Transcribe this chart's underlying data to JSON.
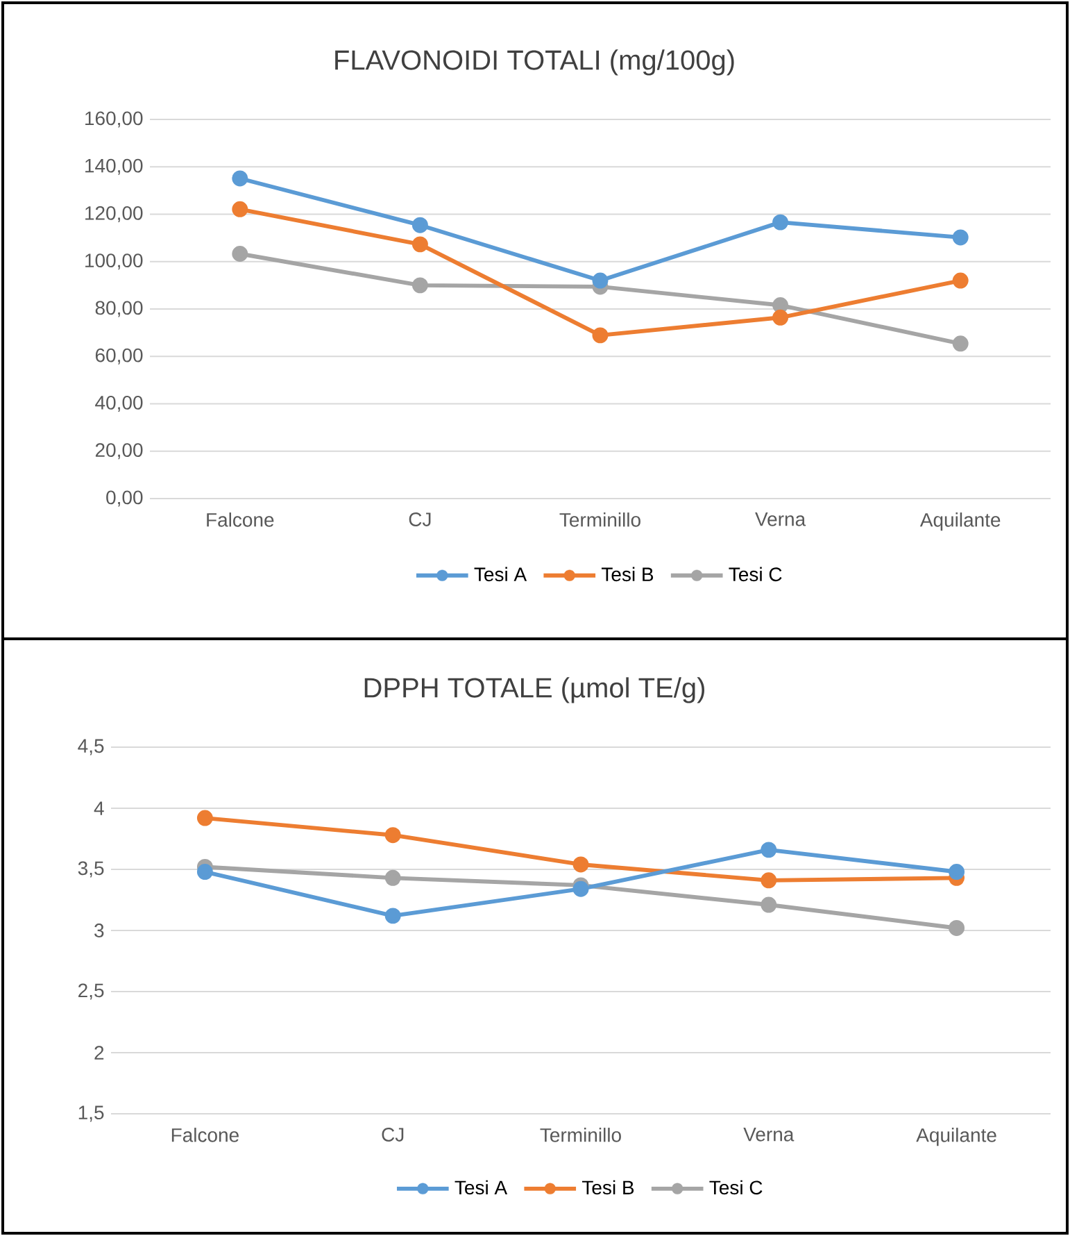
{
  "chart_data": [
    {
      "type": "line",
      "title": "FLAVONOIDI TOTALI (mg/100g)",
      "categories": [
        "Falcone",
        "CJ",
        "Terminillo",
        "Verna",
        "Aquilante"
      ],
      "series": [
        {
          "name": "Tesi A",
          "color": "#5b9bd5",
          "values": [
            135.1,
            115.4,
            92.0,
            116.6,
            110.2
          ]
        },
        {
          "name": "Tesi B",
          "color": "#ed7d31",
          "values": [
            122.1,
            107.3,
            68.9,
            76.4,
            92.0
          ]
        },
        {
          "name": "Tesi C",
          "color": "#a5a5a5",
          "values": [
            103.3,
            90.0,
            89.4,
            81.6,
            65.4
          ]
        }
      ],
      "ylim": [
        0,
        160
      ],
      "yticks": [
        {
          "value": 0,
          "label": "0,00"
        },
        {
          "value": 20,
          "label": "20,00"
        },
        {
          "value": 40,
          "label": "40,00"
        },
        {
          "value": 60,
          "label": "60,00"
        },
        {
          "value": 80,
          "label": "80,00"
        },
        {
          "value": 100,
          "label": "100,00"
        },
        {
          "value": 120,
          "label": "120,00"
        },
        {
          "value": 140,
          "label": "140,00"
        },
        {
          "value": 160,
          "label": "160,00"
        }
      ],
      "grid": "y",
      "legend": "bottom",
      "marker": "circle"
    },
    {
      "type": "line",
      "title": "DPPH TOTALE (µmol TE/g)",
      "categories": [
        "Falcone",
        "CJ",
        "Terminillo",
        "Verna",
        "Aquilante"
      ],
      "series": [
        {
          "name": "Tesi A",
          "color": "#5b9bd5",
          "values": [
            3.48,
            3.12,
            3.34,
            3.66,
            3.48
          ]
        },
        {
          "name": "Tesi B",
          "color": "#ed7d31",
          "values": [
            3.92,
            3.78,
            3.54,
            3.41,
            3.43
          ]
        },
        {
          "name": "Tesi C",
          "color": "#a5a5a5",
          "values": [
            3.52,
            3.43,
            3.37,
            3.21,
            3.02
          ]
        }
      ],
      "ylim": [
        1.5,
        4.5
      ],
      "yticks": [
        {
          "value": 1.5,
          "label": "1,5"
        },
        2,
        {
          "value": 2.5,
          "label": "2,5"
        },
        3,
        {
          "value": 3.5,
          "label": "3,5"
        },
        4,
        {
          "value": 4.5,
          "label": "4,5"
        }
      ],
      "grid": "y",
      "legend": "bottom",
      "marker": "circle"
    }
  ]
}
